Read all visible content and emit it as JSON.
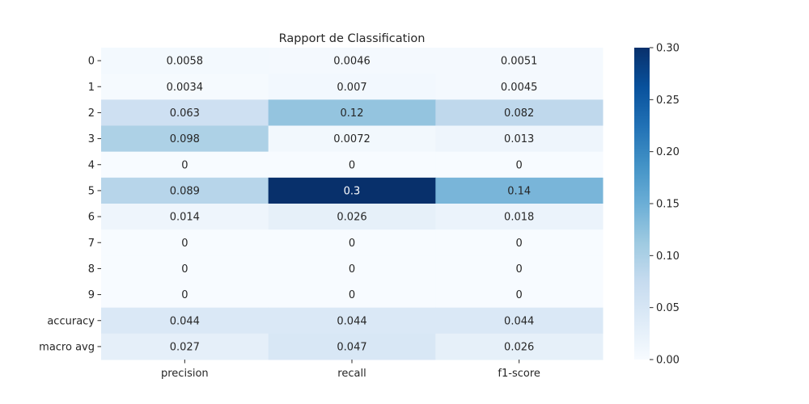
{
  "chart_data": {
    "type": "heatmap",
    "title": "Rapport de Classification",
    "xlabel": "",
    "ylabel": "",
    "columns": [
      "precision",
      "recall",
      "f1-score"
    ],
    "rows": [
      "0",
      "1",
      "2",
      "3",
      "4",
      "5",
      "6",
      "7",
      "8",
      "9",
      "accuracy",
      "macro avg"
    ],
    "values": [
      [
        0.0058,
        0.0046,
        0.0051
      ],
      [
        0.0034,
        0.007,
        0.0045
      ],
      [
        0.063,
        0.12,
        0.082
      ],
      [
        0.098,
        0.0072,
        0.013
      ],
      [
        0,
        0,
        0
      ],
      [
        0.089,
        0.3,
        0.14
      ],
      [
        0.014,
        0.026,
        0.018
      ],
      [
        0,
        0,
        0
      ],
      [
        0,
        0,
        0
      ],
      [
        0,
        0,
        0
      ],
      [
        0.044,
        0.044,
        0.044
      ],
      [
        0.027,
        0.047,
        0.026
      ]
    ],
    "labels": [
      [
        "0.0058",
        "0.0046",
        "0.0051"
      ],
      [
        "0.0034",
        "0.007",
        "0.0045"
      ],
      [
        "0.063",
        "0.12",
        "0.082"
      ],
      [
        "0.098",
        "0.0072",
        "0.013"
      ],
      [
        "0",
        "0",
        "0"
      ],
      [
        "0.089",
        "0.3",
        "0.14"
      ],
      [
        "0.014",
        "0.026",
        "0.018"
      ],
      [
        "0",
        "0",
        "0"
      ],
      [
        "0",
        "0",
        "0"
      ],
      [
        "0",
        "0",
        "0"
      ],
      [
        "0.044",
        "0.044",
        "0.044"
      ],
      [
        "0.027",
        "0.047",
        "0.026"
      ]
    ],
    "colormap": "Blues",
    "colorbar": {
      "range": [
        0,
        0.3
      ],
      "ticks": [
        0.0,
        0.05,
        0.1,
        0.15,
        0.2,
        0.25,
        0.3
      ],
      "tick_labels": [
        "0.00",
        "0.05",
        "0.10",
        "0.15",
        "0.20",
        "0.25",
        "0.30"
      ]
    },
    "grid": false
  }
}
